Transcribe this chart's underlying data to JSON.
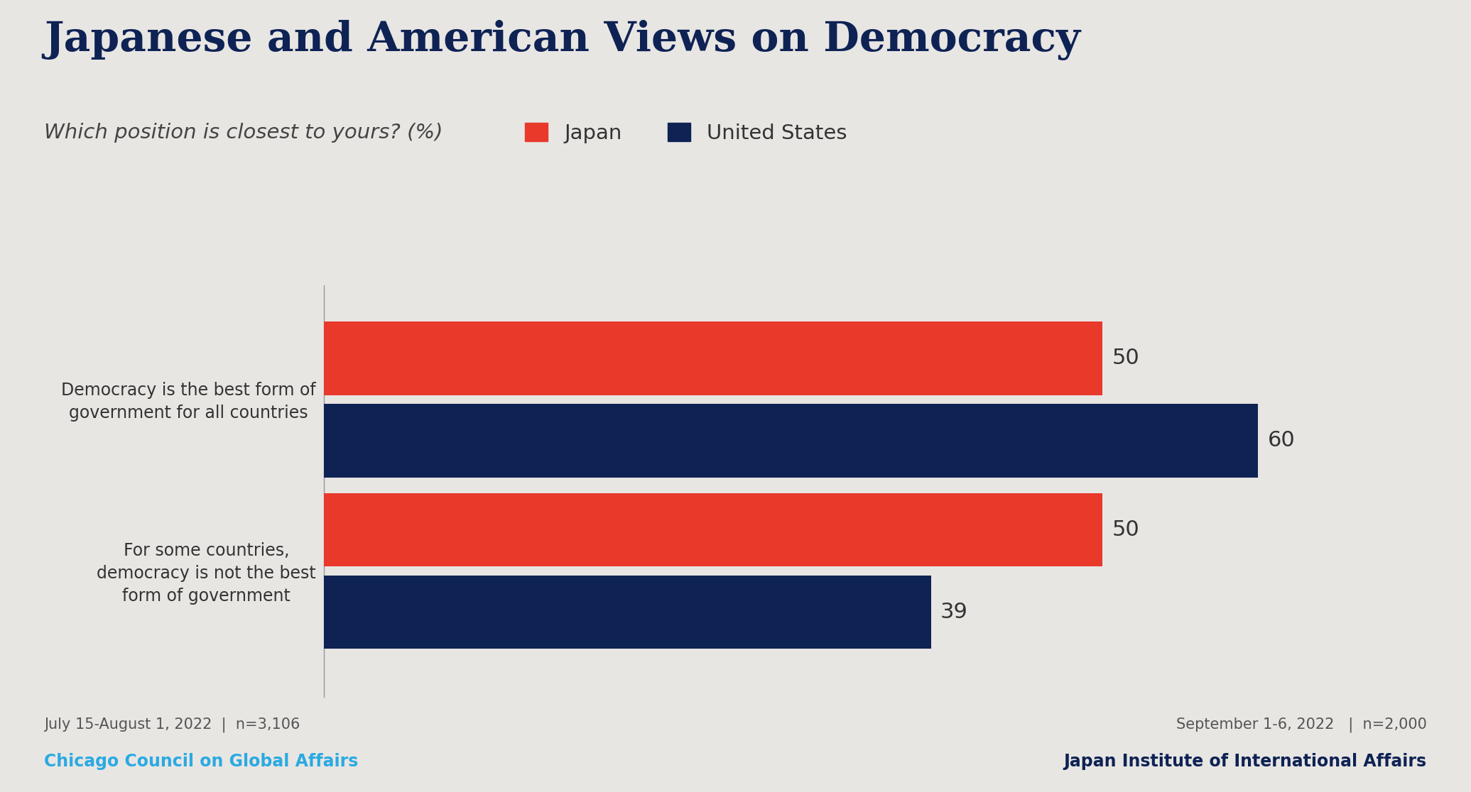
{
  "title": "Japanese and American Views on Democracy",
  "subtitle": "Which position is closest to yours? (%)",
  "categories": [
    "Democracy is the best form of\ngovernment for all countries",
    "For some countries,\ndemocracy is not the best\nform of government"
  ],
  "japan_values": [
    50,
    50
  ],
  "us_values": [
    60,
    39
  ],
  "japan_color": "#E8392A",
  "us_color": "#0E2254",
  "background_color": "#E8E6E3",
  "title_color": "#0E2254",
  "subtitle_color": "#444444",
  "label_color": "#333333",
  "value_color": "#333333",
  "legend_japan": "Japan",
  "legend_us": "United States",
  "footer_left_line1": "July 15-August 1, 2022  |  n=3,106",
  "footer_left_line2": "Chicago Council on Global Affairs",
  "footer_right_line1": "September 1-6, 2022   |  n=2,000",
  "footer_right_line2": "Japan Institute of International Affairs",
  "footer_left_color": "#555555",
  "footer_left_org_color": "#2aaae2",
  "footer_right_color": "#555555",
  "footer_right_org_color": "#0E2254",
  "xlim": [
    0,
    68
  ],
  "bar_height": 0.32,
  "bar_gap": 0.04,
  "group_centers": [
    0.75,
    0.0
  ],
  "ylim": [
    -0.55,
    1.25
  ]
}
